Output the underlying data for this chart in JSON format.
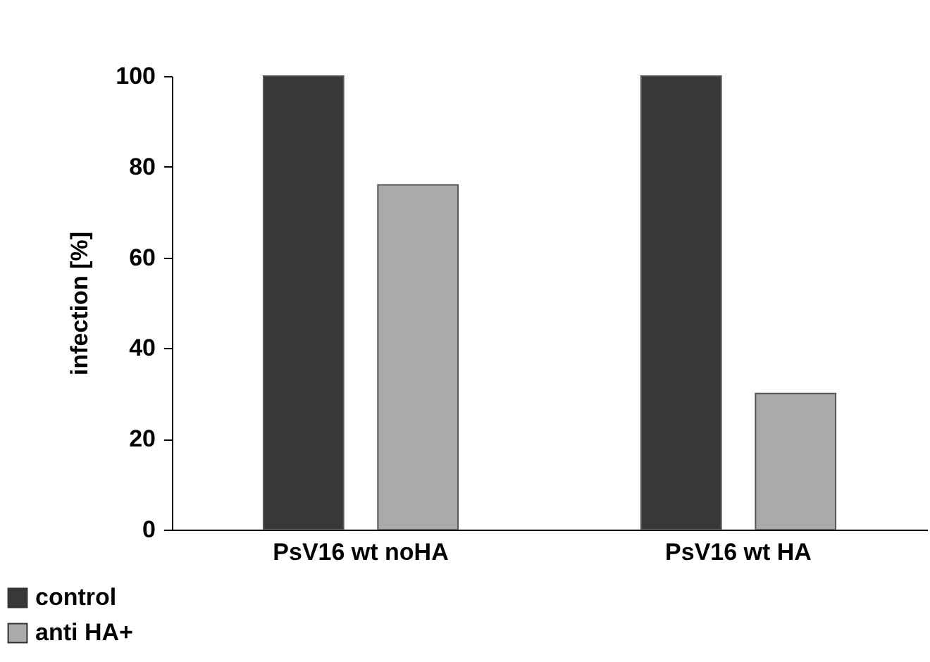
{
  "chart_data": {
    "type": "bar",
    "ylabel": "infection [%]",
    "categories": [
      "PsV16 wt noHA",
      "PsV16 wt HA"
    ],
    "series": [
      {
        "name": "control",
        "color": "#383838",
        "values": [
          100,
          100
        ]
      },
      {
        "name": "anti HA+",
        "color": "#aaaaaa",
        "values": [
          76,
          30
        ]
      }
    ],
    "ylim": [
      0,
      100
    ],
    "yticks": [
      0,
      20,
      40,
      60,
      80,
      100
    ],
    "grid": false,
    "legend": "bottom left"
  }
}
